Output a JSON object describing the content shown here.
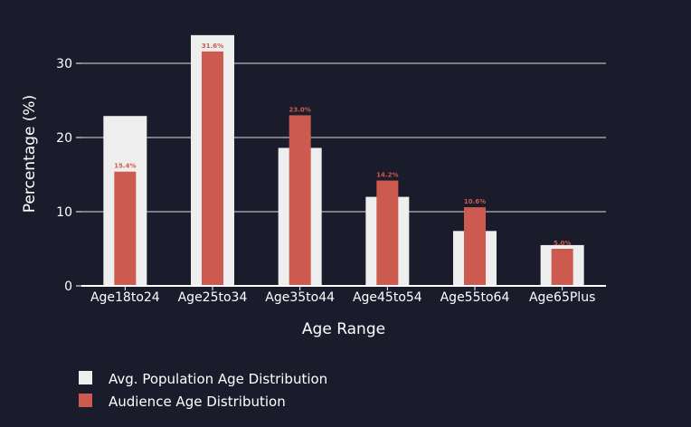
{
  "colors": {
    "background": "#1a1c2c",
    "population": "#eeeeee",
    "audience": "#cd5a4e",
    "grid": "#ffffff",
    "text": "#ffffff"
  },
  "chart_data": {
    "type": "bar",
    "xlabel": "Age Range",
    "ylabel": "Percentage (%)",
    "ylim": [
      0,
      34
    ],
    "yticks": [
      0,
      10,
      20,
      30
    ],
    "grid": true,
    "legend_position": "bottom-left",
    "categories": [
      "Age18to24",
      "Age25to34",
      "Age35to44",
      "Age45to54",
      "Age55to64",
      "Age65Plus"
    ],
    "series": [
      {
        "name": "Avg. Population Age Distribution",
        "values": [
          22.9,
          33.8,
          18.6,
          12.0,
          7.4,
          5.5
        ]
      },
      {
        "name": "Audience Age Distribution",
        "values": [
          15.4,
          31.6,
          23.0,
          14.2,
          10.6,
          5.0
        ],
        "data_labels": [
          "15.4%",
          "31.6%",
          "23.0%",
          "14.2%",
          "10.6%",
          "5.0%"
        ]
      }
    ]
  }
}
